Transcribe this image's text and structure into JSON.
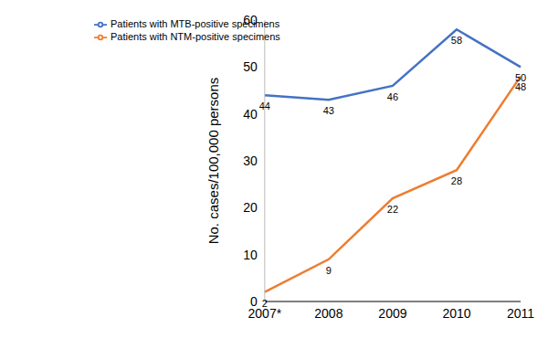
{
  "chart_data": {
    "type": "line",
    "ylabel": "No. cases/100,000 persons",
    "categories": [
      "2007*",
      "2008",
      "2009",
      "2010",
      "2011"
    ],
    "series": [
      {
        "name": "Patients with MTB-positive specimens",
        "color": "#4472c4",
        "values": [
          44,
          43,
          46,
          58,
          50
        ]
      },
      {
        "name": "Patients with NTM-positive specimens",
        "color": "#ed7d31",
        "values": [
          2,
          9,
          22,
          28,
          48
        ]
      }
    ],
    "ylim": [
      0,
      60
    ],
    "yticks": [
      0,
      10,
      20,
      30,
      40,
      50,
      60
    ],
    "grid": false,
    "legend": "upper left",
    "data_labels": true
  }
}
